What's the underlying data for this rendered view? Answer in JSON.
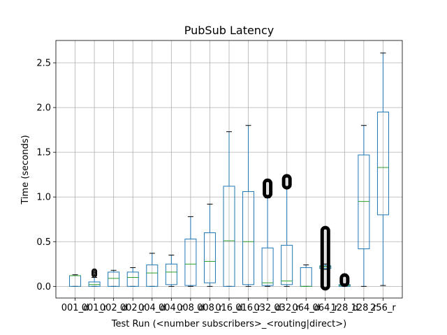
{
  "chart_data": {
    "type": "box",
    "title": "PubSub Latency",
    "xlabel": "Test Run (<number subscribers>_<routing|direct>)",
    "ylabel": "Time (seconds)",
    "ylim": [
      -0.13,
      2.75
    ],
    "yticks": [
      0.0,
      0.5,
      1.0,
      1.5,
      2.0,
      2.5
    ],
    "grid": true,
    "colors": {
      "box": "#1f77b4",
      "median": "#2ca02c",
      "whisker": "#1f77b4",
      "flier": "#000000",
      "grid": "#b0b0b0"
    },
    "categories": [
      "001_d",
      "001_r",
      "002_d",
      "002_r",
      "004_d",
      "004_r",
      "008_d",
      "008_r",
      "016_d",
      "016_r",
      "032_d",
      "032_r",
      "064_d",
      "064_r",
      "128_d",
      "128_r",
      "256_r"
    ],
    "tick_labels": [
      "001_d",
      "001_r",
      "002_d",
      "002_r",
      "004_d",
      "004_r",
      "008_d",
      "008_r",
      "016_d",
      "016_r",
      "032_d",
      "032_r",
      "064_d",
      "064_r",
      "128_d",
      "128_r",
      "256_r"
    ],
    "boxes": [
      {
        "whislo": 0.0,
        "q1": 0.0,
        "med": 0.12,
        "q3": 0.12,
        "whishi": 0.13,
        "fliers": []
      },
      {
        "whislo": 0.0,
        "q1": 0.0,
        "med": 0.02,
        "q3": 0.05,
        "whishi": 0.1,
        "fliers": [
          0.13,
          0.14,
          0.15,
          0.16,
          0.17
        ]
      },
      {
        "whislo": 0.0,
        "q1": 0.0,
        "med": 0.09,
        "q3": 0.16,
        "whishi": 0.18,
        "fliers": []
      },
      {
        "whislo": 0.0,
        "q1": 0.0,
        "med": 0.1,
        "q3": 0.16,
        "whishi": 0.21,
        "fliers": []
      },
      {
        "whislo": 0.0,
        "q1": 0.0,
        "med": 0.15,
        "q3": 0.24,
        "whishi": 0.37,
        "fliers": []
      },
      {
        "whislo": 0.0,
        "q1": 0.02,
        "med": 0.16,
        "q3": 0.25,
        "whishi": 0.35,
        "fliers": []
      },
      {
        "whislo": 0.0,
        "q1": 0.01,
        "med": 0.25,
        "q3": 0.53,
        "whishi": 0.78,
        "fliers": []
      },
      {
        "whislo": 0.0,
        "q1": 0.04,
        "med": 0.28,
        "q3": 0.6,
        "whishi": 0.92,
        "fliers": []
      },
      {
        "whislo": 0.0,
        "q1": 0.0,
        "med": 0.51,
        "q3": 1.12,
        "whishi": 1.73,
        "fliers": []
      },
      {
        "whislo": 0.0,
        "q1": 0.02,
        "med": 0.5,
        "q3": 1.06,
        "whishi": 1.8,
        "fliers": []
      },
      {
        "whislo": 0.0,
        "q1": 0.01,
        "med": 0.04,
        "q3": 0.43,
        "whishi": 0.99,
        "fliers_range": [
          1.03,
          1.16
        ]
      },
      {
        "whislo": 0.0,
        "q1": 0.02,
        "med": 0.06,
        "q3": 0.46,
        "whishi": 1.1,
        "fliers_range": [
          1.13,
          1.21
        ]
      },
      {
        "whislo": 0.0,
        "q1": 0.0,
        "med": 0.0,
        "q3": 0.21,
        "whishi": 0.24,
        "fliers": []
      },
      {
        "whislo": 0.19,
        "q1": 0.2,
        "med": 0.22,
        "q3": 0.23,
        "whishi": 0.25,
        "fliers_range": [
          0.0,
          0.63
        ]
      },
      {
        "whislo": 0.0,
        "q1": 0.0,
        "med": 0.01,
        "q3": 0.02,
        "whishi": 0.03,
        "fliers_range": [
          0.04,
          0.1
        ]
      },
      {
        "whislo": 0.0,
        "q1": 0.42,
        "med": 0.95,
        "q3": 1.47,
        "whishi": 1.8,
        "fliers": []
      },
      {
        "whislo": 0.01,
        "q1": 0.8,
        "med": 1.33,
        "q3": 1.95,
        "whishi": 2.61,
        "fliers": []
      }
    ]
  }
}
